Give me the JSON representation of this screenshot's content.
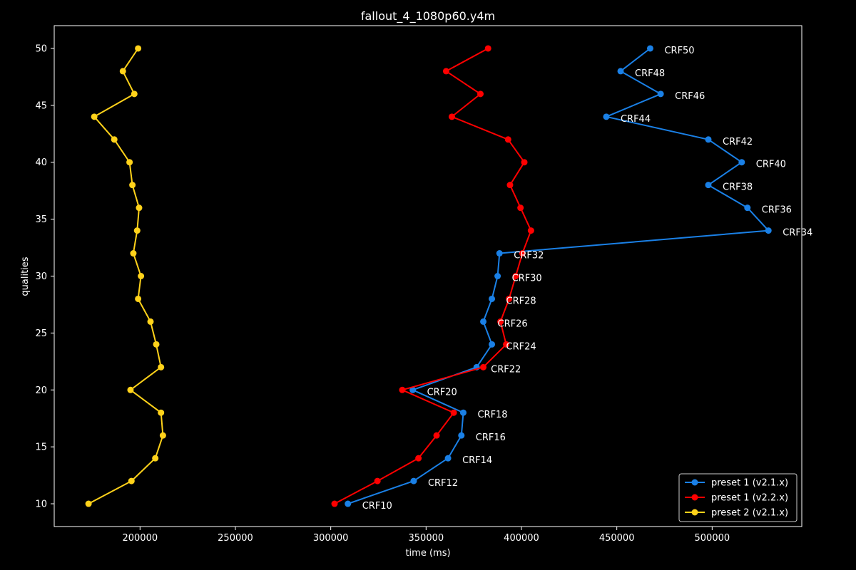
{
  "chart_data": {
    "type": "line",
    "title": "fallout_4_1080p60.y4m",
    "xlabel": "time (ms)",
    "ylabel": "qualities",
    "xlim": [
      155000,
      547000
    ],
    "ylim": [
      8,
      52
    ],
    "x_ticks": [
      200000,
      250000,
      300000,
      350000,
      400000,
      450000,
      500000
    ],
    "y_ticks": [
      10,
      15,
      20,
      25,
      30,
      35,
      40,
      45,
      50
    ],
    "grid": false,
    "legend_position": "lower-right",
    "series": [
      {
        "name": "preset 1 (v2.1.x)",
        "color": "#1a80e6",
        "points": [
          [
            309000,
            10
          ],
          [
            343500,
            12
          ],
          [
            361500,
            14
          ],
          [
            368500,
            16
          ],
          [
            369500,
            18
          ],
          [
            343000,
            20
          ],
          [
            376500,
            22
          ],
          [
            384500,
            24
          ],
          [
            380000,
            26
          ],
          [
            384500,
            28
          ],
          [
            387500,
            30
          ],
          [
            388500,
            32
          ],
          [
            529500,
            34
          ],
          [
            518500,
            36
          ],
          [
            498000,
            38
          ],
          [
            515500,
            40
          ],
          [
            498000,
            42
          ],
          [
            444500,
            44
          ],
          [
            473000,
            46
          ],
          [
            452000,
            48
          ],
          [
            467500,
            50
          ]
        ],
        "labels": [
          "CRF10",
          "CRF12",
          "CRF14",
          "CRF16",
          "CRF18",
          "CRF20",
          "CRF22",
          "CRF24",
          "CRF26",
          "CRF28",
          "CRF30",
          "CRF32",
          "CRF34",
          "CRF36",
          "CRF38",
          "CRF40",
          "CRF42",
          "CRF44",
          "CRF46",
          "CRF48",
          "CRF50"
        ]
      },
      {
        "name": "preset 1 (v2.2.x)",
        "color": "#ff0000",
        "points": [
          [
            302000,
            10
          ],
          [
            324500,
            12
          ],
          [
            346000,
            14
          ],
          [
            355500,
            16
          ],
          [
            364500,
            18
          ],
          [
            337500,
            20
          ],
          [
            380000,
            22
          ],
          [
            392000,
            24
          ],
          [
            389000,
            26
          ],
          [
            393500,
            28
          ],
          [
            397000,
            30
          ],
          [
            400500,
            32
          ],
          [
            405000,
            34
          ],
          [
            399500,
            36
          ],
          [
            394000,
            38
          ],
          [
            401500,
            40
          ],
          [
            393000,
            42
          ],
          [
            363500,
            44
          ],
          [
            378500,
            46
          ],
          [
            360500,
            48
          ],
          [
            382500,
            50
          ]
        ]
      },
      {
        "name": "preset 2 (v2.1.x)",
        "color": "#ffd21a",
        "points": [
          [
            173000,
            10
          ],
          [
            195500,
            12
          ],
          [
            208000,
            14
          ],
          [
            212000,
            16
          ],
          [
            211000,
            18
          ],
          [
            195000,
            20
          ],
          [
            211000,
            22
          ],
          [
            208500,
            24
          ],
          [
            205500,
            26
          ],
          [
            199000,
            28
          ],
          [
            200500,
            30
          ],
          [
            196500,
            32
          ],
          [
            198500,
            34
          ],
          [
            199500,
            36
          ],
          [
            196000,
            38
          ],
          [
            194500,
            40
          ],
          [
            186500,
            42
          ],
          [
            176000,
            44
          ],
          [
            197000,
            46
          ],
          [
            191000,
            48
          ],
          [
            199000,
            50
          ]
        ]
      }
    ]
  }
}
